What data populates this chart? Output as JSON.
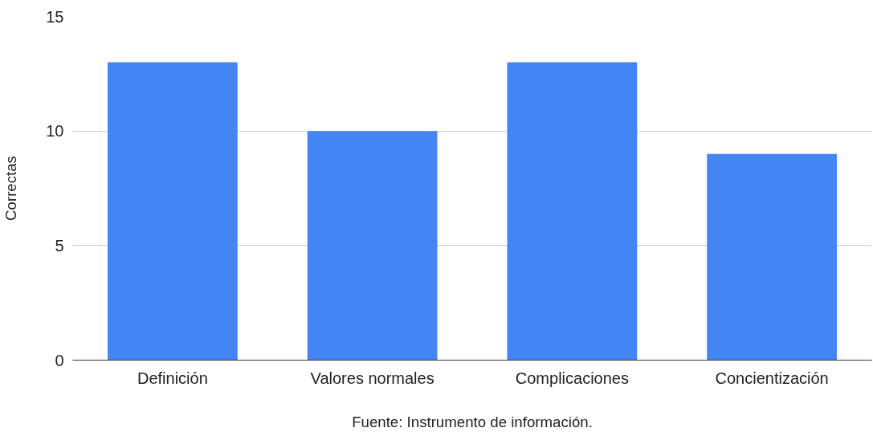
{
  "chart_data": {
    "type": "bar",
    "xlabel": "Fuente: Instrumento de información.",
    "ylabel": "Correctas",
    "categories": [
      "Definición",
      "Valores normales",
      "Complicaciones",
      "Concientización"
    ],
    "values": [
      13,
      10,
      13,
      9
    ],
    "color": "#4285f4",
    "ylim": [
      0,
      15
    ],
    "yticks": [
      0,
      5,
      10,
      15
    ],
    "grid": "y"
  }
}
